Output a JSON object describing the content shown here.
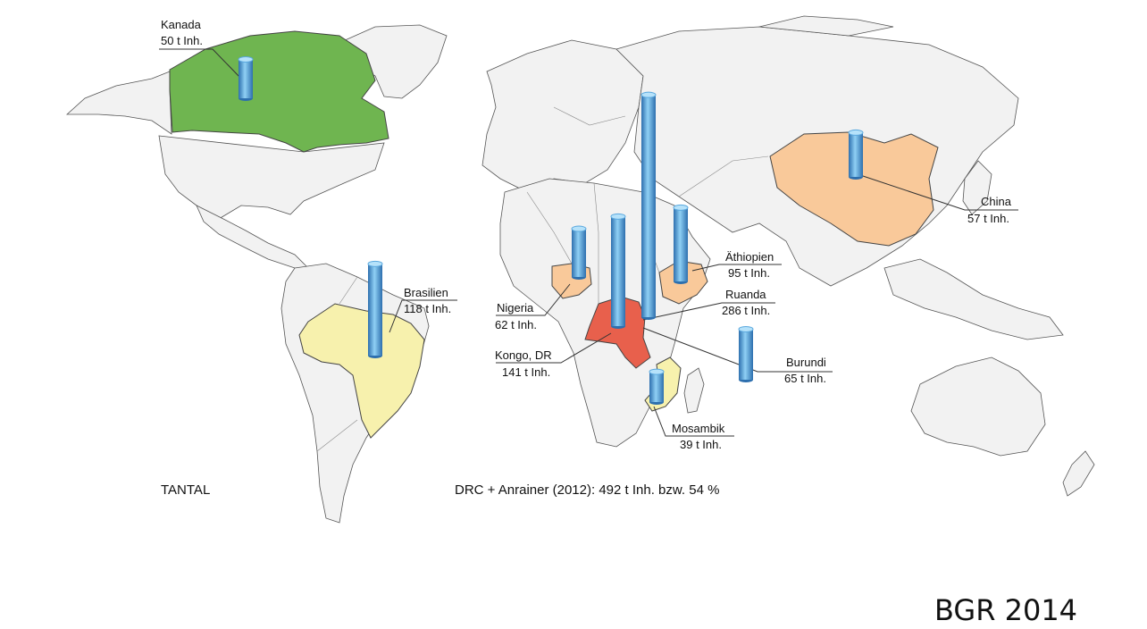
{
  "map_title": "TANTAL",
  "summary": "DRC + Anrainer (2012): 492 t Inh. bzw. 54 %",
  "credit": "BGR 2014",
  "colors": {
    "land": "#f2f2f2",
    "border": "#555555",
    "canada": "#6fb550",
    "china_nigeria_ethiopia": "#f9c99a",
    "drc": "#e8604c",
    "brazil_mozambique": "#f7f1ad",
    "cylinder": "#5aa8de"
  },
  "icons": [
    "cylinder-bar-icon"
  ],
  "countries": [
    {
      "id": "kanada",
      "name": "Kanada",
      "value": "50 t Inh.",
      "amount": 50
    },
    {
      "id": "china",
      "name": "China",
      "value": "57 t Inh.",
      "amount": 57
    },
    {
      "id": "brasilien",
      "name": "Brasilien",
      "value": "118 t Inh.",
      "amount": 118
    },
    {
      "id": "nigeria",
      "name": "Nigeria",
      "value": "62 t Inh.",
      "amount": 62
    },
    {
      "id": "kongo",
      "name": "Kongo, DR",
      "value": "141 t Inh.",
      "amount": 141
    },
    {
      "id": "ruanda",
      "name": "Ruanda",
      "value": "286 t Inh.",
      "amount": 286
    },
    {
      "id": "aethiopien",
      "name": "Äthiopien",
      "value": "95 t Inh.",
      "amount": 95
    },
    {
      "id": "burundi",
      "name": "Burundi",
      "value": "65 t Inh.",
      "amount": 65
    },
    {
      "id": "mosambik",
      "name": "Mosambik",
      "value": "39 t Inh.",
      "amount": 39
    }
  ]
}
